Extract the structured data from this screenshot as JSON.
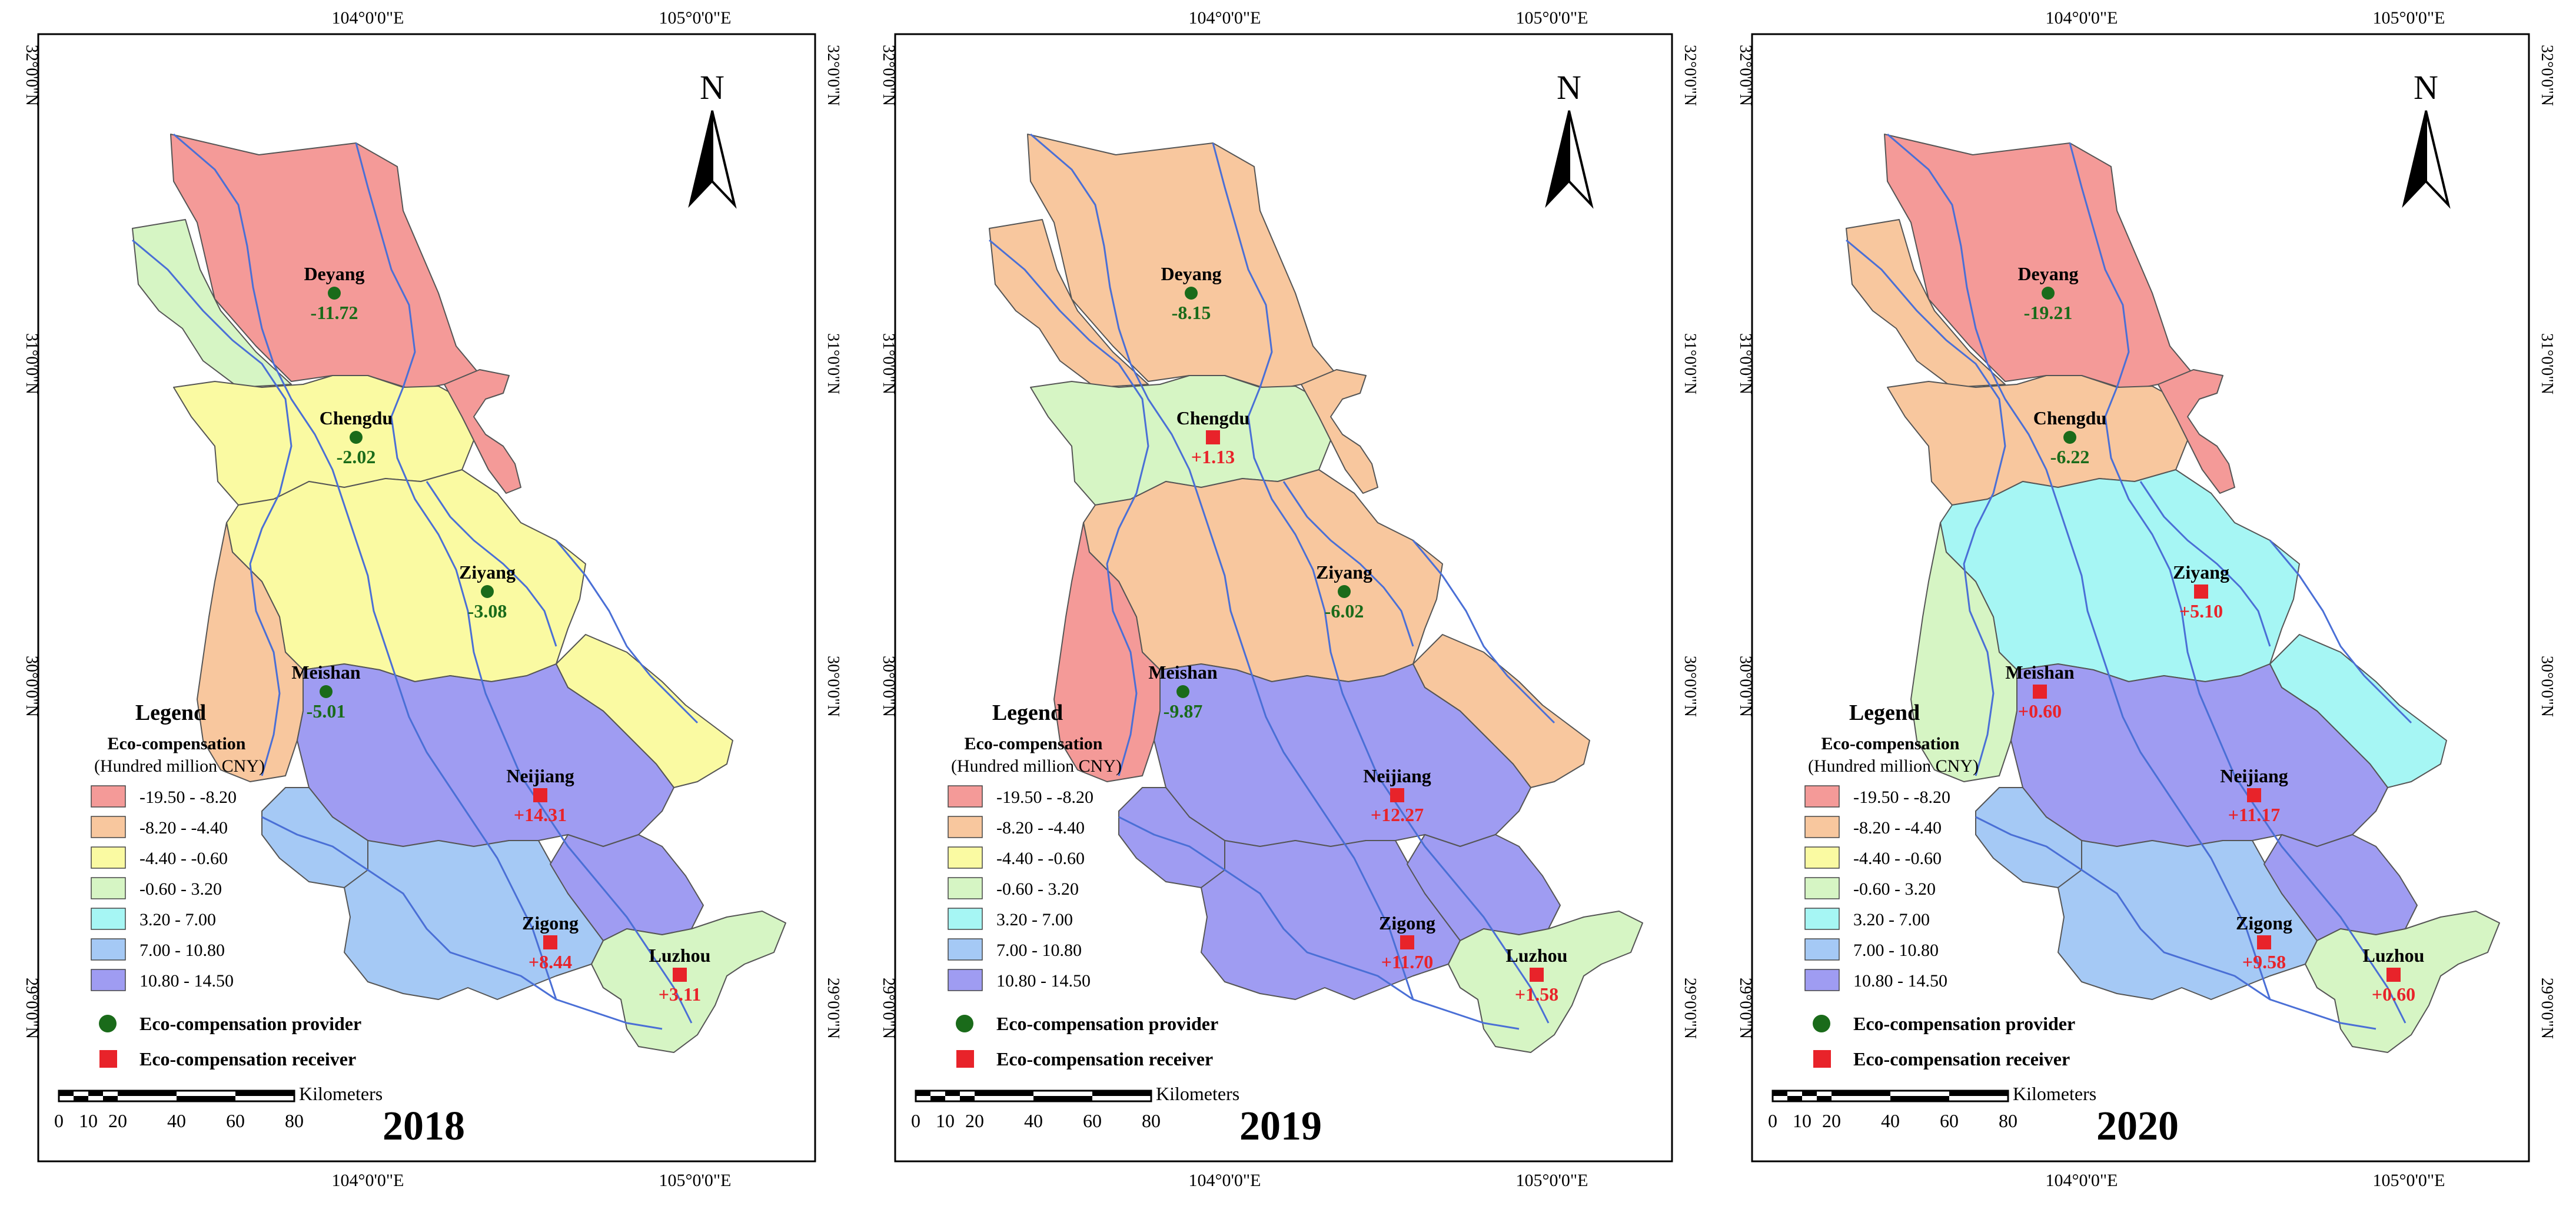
{
  "legend": {
    "title": "Legend",
    "subtitle": "Eco-compensation",
    "unit": "(Hundred million CNY)",
    "classes": [
      {
        "label": "-19.50 - -8.20",
        "color": "#F49A98"
      },
      {
        "label": "-8.20 - -4.40",
        "color": "#F8C79E"
      },
      {
        "label": "-4.40 - -0.60",
        "color": "#FAFAA2"
      },
      {
        "label": "-0.60 - 3.20",
        "color": "#D6F5C4"
      },
      {
        "label": "3.20 - 7.00",
        "color": "#A6F6F4"
      },
      {
        "label": "7.00 - 10.80",
        "color": "#A5C9F5"
      },
      {
        "label": "10.80 - 14.50",
        "color": "#9F9CF2"
      }
    ],
    "provider_label": "Eco-compensation provider",
    "receiver_label": "Eco-compensation receiver",
    "provider_color": "#1A6B1A",
    "receiver_color": "#E8232A"
  },
  "axes": {
    "top_ticks": [
      "104°0'0\"E",
      "105°0'0\"E"
    ],
    "bottom_ticks": [
      "104°0'0\"E",
      "105°0'0\"E"
    ],
    "side_ticks": [
      "32°0'0\"N",
      "31°0'0\"N",
      "30°0'0\"N",
      "29°0'0\"N"
    ]
  },
  "scale_bar": {
    "unit": "Kilometers",
    "ticks": [
      "0",
      "10",
      "20",
      "40",
      "60",
      "80"
    ]
  },
  "north_label": "N",
  "colors": {
    "river": "#4A6FD6",
    "boundary": "#555555",
    "frame": "#000000"
  },
  "maps": [
    {
      "year": "2018",
      "cities": [
        {
          "name": "Deyang",
          "value": "-11.72",
          "role": "provider",
          "class": 0
        },
        {
          "name": "Chengdu",
          "value": "-2.02",
          "role": "provider",
          "class": 2
        },
        {
          "name": "Ziyang",
          "value": "-3.08",
          "role": "provider",
          "class": 2
        },
        {
          "name": "Meishan",
          "value": "-5.01",
          "role": "provider",
          "class": 1
        },
        {
          "name": "Neijiang",
          "value": "+14.31",
          "role": "receiver",
          "class": 6
        },
        {
          "name": "Zigong",
          "value": "+8.44",
          "role": "receiver",
          "class": 5
        },
        {
          "name": "Luzhou",
          "value": "+3.11",
          "role": "receiver",
          "class": 3
        }
      ],
      "extra": {
        "north_strip": 3,
        "upper_belt": 2,
        "west_strip": 1,
        "east_strip": 2,
        "sw_patch": 5,
        "se_patch": 6,
        "ne_spur": 0
      }
    },
    {
      "year": "2019",
      "cities": [
        {
          "name": "Deyang",
          "value": "-8.15",
          "role": "provider",
          "class": 1
        },
        {
          "name": "Chengdu",
          "value": "+1.13",
          "role": "receiver",
          "class": 3
        },
        {
          "name": "Ziyang",
          "value": "-6.02",
          "role": "provider",
          "class": 1
        },
        {
          "name": "Meishan",
          "value": "-9.87",
          "role": "provider",
          "class": 0
        },
        {
          "name": "Neijiang",
          "value": "+12.27",
          "role": "receiver",
          "class": 6
        },
        {
          "name": "Zigong",
          "value": "+11.70",
          "role": "receiver",
          "class": 6
        },
        {
          "name": "Luzhou",
          "value": "+1.58",
          "role": "receiver",
          "class": 3
        }
      ],
      "extra": {
        "north_strip": 1,
        "upper_belt": 3,
        "west_strip": 3,
        "east_strip": 1,
        "sw_patch": 6,
        "se_patch": 6,
        "ne_spur": 1
      }
    },
    {
      "year": "2020",
      "cities": [
        {
          "name": "Deyang",
          "value": "-19.21",
          "role": "provider",
          "class": 0
        },
        {
          "name": "Chengdu",
          "value": "-6.22",
          "role": "provider",
          "class": 1
        },
        {
          "name": "Ziyang",
          "value": "+5.10",
          "role": "receiver",
          "class": 4
        },
        {
          "name": "Meishan",
          "value": "+0.60",
          "role": "receiver",
          "class": 3
        },
        {
          "name": "Neijiang",
          "value": "+11.17",
          "role": "receiver",
          "class": 6
        },
        {
          "name": "Zigong",
          "value": "+9.58",
          "role": "receiver",
          "class": 5
        },
        {
          "name": "Luzhou",
          "value": "+0.60",
          "role": "receiver",
          "class": 3
        }
      ],
      "extra": {
        "north_strip": 1,
        "upper_belt": 1,
        "west_strip": 1,
        "east_strip": 4,
        "sw_patch": 5,
        "se_patch": 6,
        "ne_spur": 0
      }
    }
  ]
}
